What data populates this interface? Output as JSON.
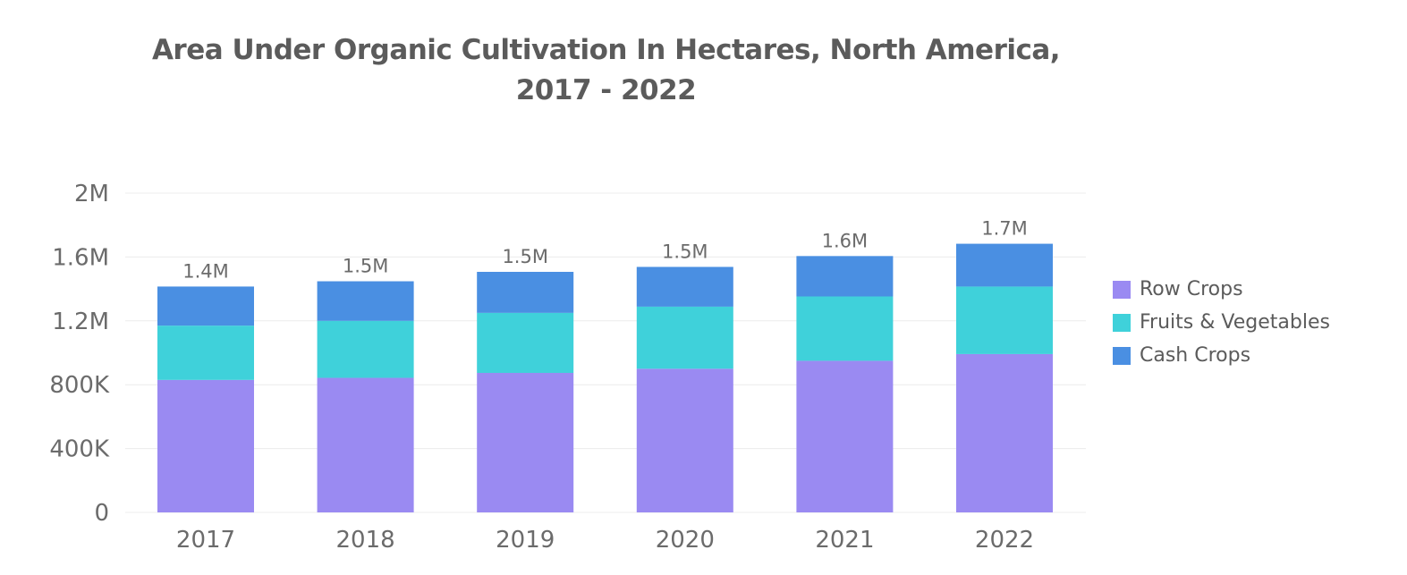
{
  "chart_data": {
    "type": "bar",
    "stacked": true,
    "title": [
      "Area Under Organic Cultivation In Hectares, North America,",
      "2017 - 2022"
    ],
    "categories": [
      "2017",
      "2018",
      "2019",
      "2020",
      "2021",
      "2022"
    ],
    "series": [
      {
        "name": "Row Crops",
        "color": "#9a8af2",
        "values": [
          830000,
          843000,
          874000,
          900000,
          950000,
          992000
        ]
      },
      {
        "name": "Fruits & Vegetables",
        "color": "#3fd1da",
        "values": [
          340000,
          357000,
          376000,
          389000,
          403000,
          423000
        ]
      },
      {
        "name": "Cash Crops",
        "color": "#4a8fe2",
        "values": [
          245000,
          248000,
          257000,
          249000,
          253000,
          268000
        ]
      }
    ],
    "totals": [
      "1.4M",
      "1.5M",
      "1.5M",
      "1.5M",
      "1.6M",
      "1.7M"
    ],
    "yticks": [
      0,
      400000,
      800000,
      1200000,
      1600000,
      2000000
    ],
    "ytick_labels": [
      "0",
      "400K",
      "800K",
      "1.2M",
      "1.6M",
      "2M"
    ],
    "ylim": [
      0,
      2000000
    ],
    "grid": true,
    "legend": "right"
  }
}
